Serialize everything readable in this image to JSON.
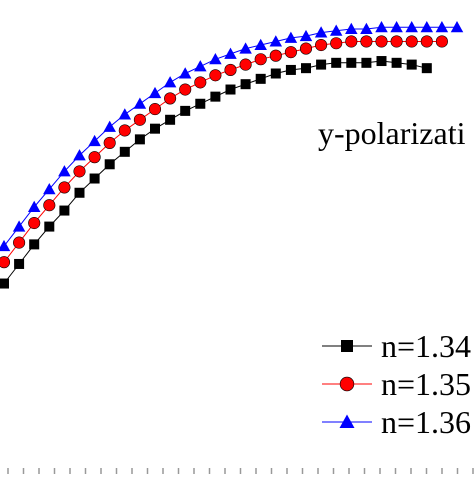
{
  "chart_data": {
    "type": "line",
    "annotation": "y-polarizati",
    "legend_placement": "bottom-right",
    "grid": false,
    "xlim": [
      0,
      31
    ],
    "ylim": [
      0,
      25
    ],
    "series": [
      {
        "name": "n=1.34",
        "color": "#000000",
        "marker": "square",
        "x": [
          0,
          1,
          2,
          3,
          4,
          5,
          6,
          7,
          8,
          9,
          10,
          11,
          12,
          13,
          14,
          15,
          16,
          17,
          18,
          19,
          20,
          21,
          22,
          23,
          24,
          25,
          26,
          27,
          28
        ],
        "values": [
          10.7,
          11.8,
          12.9,
          13.9,
          14.8,
          15.8,
          16.6,
          17.4,
          18.1,
          18.8,
          19.4,
          19.9,
          20.4,
          20.8,
          21.2,
          21.6,
          21.9,
          22.2,
          22.5,
          22.7,
          22.8,
          23.0,
          23.1,
          23.1,
          23.1,
          23.2,
          23.1,
          23.0,
          22.8
        ]
      },
      {
        "name": "n=1.35",
        "color": "#ff0000",
        "marker": "circle",
        "x": [
          0,
          1,
          2,
          3,
          4,
          5,
          6,
          7,
          8,
          9,
          10,
          11,
          12,
          13,
          14,
          15,
          16,
          17,
          18,
          19,
          20,
          21,
          22,
          23,
          24,
          25,
          26,
          27,
          28,
          29
        ],
        "values": [
          11.9,
          13.0,
          14.1,
          15.1,
          16.1,
          17.0,
          17.8,
          18.6,
          19.3,
          19.9,
          20.5,
          21.1,
          21.6,
          22.0,
          22.4,
          22.7,
          23.0,
          23.3,
          23.5,
          23.7,
          23.9,
          24.1,
          24.2,
          24.3,
          24.3,
          24.3,
          24.3,
          24.3,
          24.3,
          24.3
        ]
      },
      {
        "name": "n=1.36",
        "color": "#0000ff",
        "marker": "triangle",
        "x": [
          0,
          1,
          2,
          3,
          4,
          5,
          6,
          7,
          8,
          9,
          10,
          11,
          12,
          13,
          14,
          15,
          16,
          17,
          18,
          19,
          20,
          21,
          22,
          23,
          24,
          25,
          26,
          27,
          28,
          29,
          30
        ],
        "values": [
          12.8,
          13.9,
          15.0,
          16.0,
          17.0,
          17.9,
          18.7,
          19.5,
          20.2,
          20.8,
          21.4,
          22.0,
          22.5,
          22.9,
          23.3,
          23.6,
          23.9,
          24.1,
          24.3,
          24.5,
          24.6,
          24.8,
          24.9,
          25.0,
          25.0,
          25.1,
          25.1,
          25.1,
          25.1,
          25.1,
          25.1
        ]
      }
    ]
  }
}
